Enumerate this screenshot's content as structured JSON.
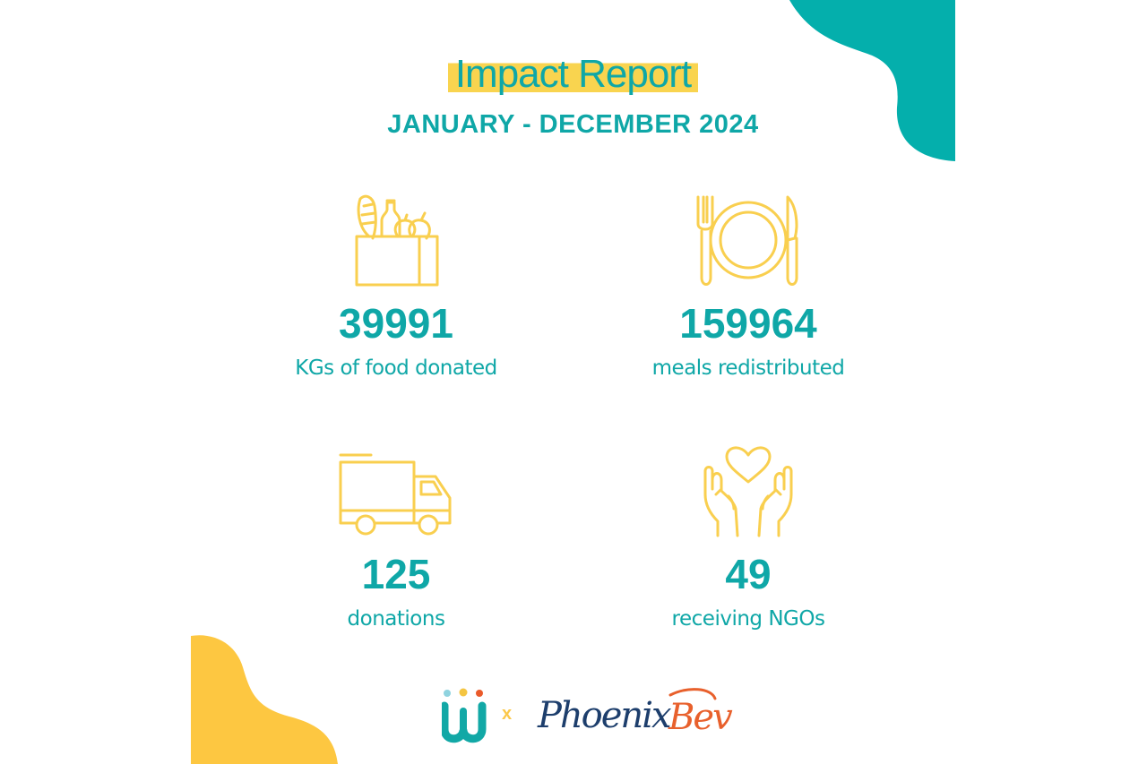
{
  "header": {
    "title": "Impact Report",
    "period": "JANUARY - DECEMBER 2024"
  },
  "stats": [
    {
      "value": "39991",
      "label": "KGs of food donated",
      "icon": "grocery-bag-icon"
    },
    {
      "value": "159964",
      "label": "meals redistributed",
      "icon": "plate-cutlery-icon"
    },
    {
      "value": "125",
      "label": "donations",
      "icon": "delivery-truck-icon"
    },
    {
      "value": "49",
      "label": "receiving NGOs",
      "icon": "hands-heart-icon"
    }
  ],
  "footer": {
    "separator": "x",
    "partner_name": "PhoenixBev"
  },
  "colors": {
    "teal": "#0fa7a7",
    "yellow": "#fbc84a",
    "icon_yellow": "#f9cf4f",
    "navy": "#1d3e6c",
    "orange": "#e8602c"
  }
}
